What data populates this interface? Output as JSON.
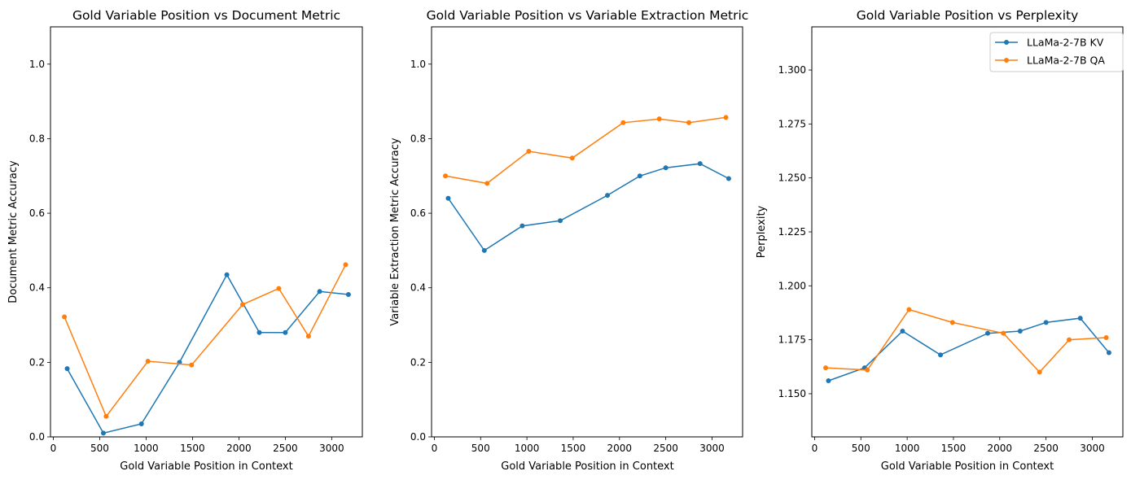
{
  "colors": {
    "kv": "#1f77b4",
    "qa": "#ff7f0e"
  },
  "legend": {
    "kv": "LLaMa-2-7B KV",
    "qa": "LLaMa-2-7B QA",
    "placement": "upper right of third panel"
  },
  "chart_data": [
    {
      "type": "line",
      "title": "Gold Variable Position vs Document Metric",
      "xlabel": "Gold Variable Position in Context",
      "ylabel": "Document Metric Accuracy",
      "xlim": [
        -30,
        3330
      ],
      "ylim": [
        0.0,
        1.1
      ],
      "xticks": [
        0,
        500,
        1000,
        1500,
        2000,
        2500,
        3000
      ],
      "yticks": [
        0.0,
        0.2,
        0.4,
        0.6,
        0.8,
        1.0
      ],
      "ytick_format": 1,
      "series": [
        {
          "name": "LLaMa-2-7B KV",
          "color_key": "kv",
          "x": [
            150,
            540,
            950,
            1360,
            1870,
            2220,
            2500,
            2870,
            3180
          ],
          "y": [
            0.183,
            0.01,
            0.035,
            0.2,
            0.435,
            0.28,
            0.28,
            0.39,
            0.382
          ]
        },
        {
          "name": "LLaMa-2-7B QA",
          "color_key": "qa",
          "x": [
            120,
            570,
            1020,
            1490,
            2040,
            2430,
            2750,
            3150
          ],
          "y": [
            0.322,
            0.055,
            0.203,
            0.193,
            0.355,
            0.398,
            0.27,
            0.462
          ]
        }
      ]
    },
    {
      "type": "line",
      "title": "Gold Variable Position vs Variable Extraction Metric",
      "xlabel": "Gold Variable Position in Context",
      "ylabel": "Variable Extraction Metric Accuracy",
      "xlim": [
        -30,
        3330
      ],
      "ylim": [
        0.0,
        1.1
      ],
      "xticks": [
        0,
        500,
        1000,
        1500,
        2000,
        2500,
        3000
      ],
      "yticks": [
        0.0,
        0.2,
        0.4,
        0.6,
        0.8,
        1.0
      ],
      "ytick_format": 1,
      "series": [
        {
          "name": "LLaMa-2-7B KV",
          "color_key": "kv",
          "x": [
            150,
            540,
            950,
            1360,
            1870,
            2220,
            2500,
            2870,
            3180
          ],
          "y": [
            0.64,
            0.5,
            0.566,
            0.58,
            0.648,
            0.7,
            0.722,
            0.733,
            0.693
          ]
        },
        {
          "name": "LLaMa-2-7B QA",
          "color_key": "qa",
          "x": [
            120,
            570,
            1020,
            1490,
            2040,
            2430,
            2750,
            3150
          ],
          "y": [
            0.7,
            0.68,
            0.766,
            0.748,
            0.843,
            0.853,
            0.843,
            0.857
          ]
        }
      ]
    },
    {
      "type": "line",
      "title": "Gold Variable Position vs Perplexity",
      "xlabel": "Gold Variable Position in Context",
      "ylabel": "Perplexity",
      "xlim": [
        -30,
        3330
      ],
      "ylim": [
        1.13,
        1.32
      ],
      "xticks": [
        0,
        500,
        1000,
        1500,
        2000,
        2500,
        3000
      ],
      "yticks": [
        1.15,
        1.175,
        1.2,
        1.225,
        1.25,
        1.275,
        1.3
      ],
      "ytick_format": 3,
      "legend": true,
      "series": [
        {
          "name": "LLaMa-2-7B KV",
          "color_key": "kv",
          "x": [
            150,
            540,
            950,
            1360,
            1870,
            2220,
            2500,
            2870,
            3180
          ],
          "y": [
            1.156,
            1.162,
            1.179,
            1.168,
            1.178,
            1.179,
            1.183,
            1.185,
            1.169
          ]
        },
        {
          "name": "LLaMa-2-7B QA",
          "color_key": "qa",
          "x": [
            120,
            570,
            1020,
            1490,
            2040,
            2430,
            2750,
            3150
          ],
          "y": [
            1.162,
            1.161,
            1.189,
            1.183,
            1.178,
            1.16,
            1.175,
            1.176
          ]
        }
      ]
    }
  ]
}
